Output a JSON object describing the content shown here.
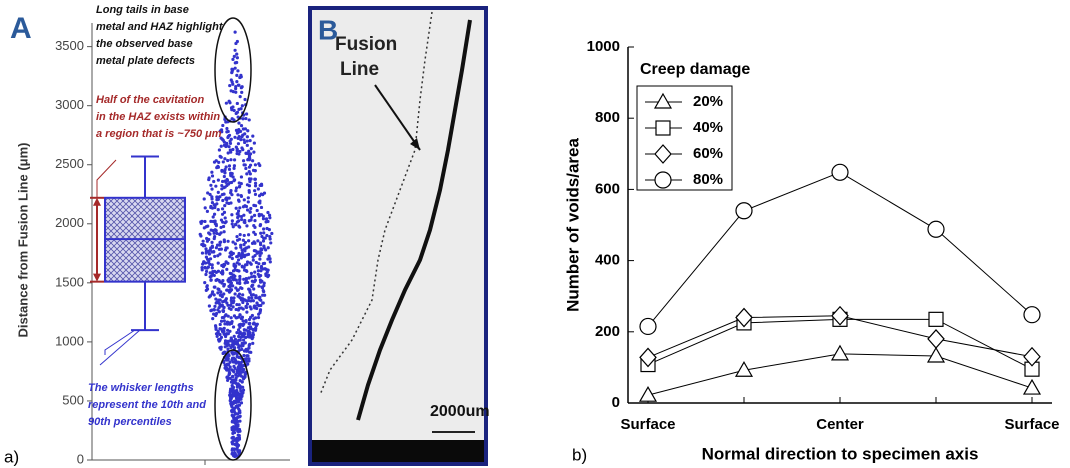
{
  "chart_data": [
    {
      "type": "box",
      "panel_label": "A",
      "caption": "a)",
      "y_label": "Distance from Fusion Line (μm)",
      "ylim": [
        0,
        3700
      ],
      "yticks": [
        0,
        500,
        1000,
        1500,
        2000,
        2500,
        3000,
        3500
      ],
      "color": "#3333cc",
      "box": {
        "whisker_low": 1100,
        "q1": 1510,
        "median": 1870,
        "q3": 2220,
        "whisker_high": 2570
      },
      "annotations": [
        {
          "lines": [
            "Long tails in base",
            "metal and HAZ highlight",
            "the observed base",
            "metal plate defects"
          ],
          "color": "#111111"
        },
        {
          "lines": [
            "Half of the cavitation",
            "in the HAZ exists within",
            "a region that is ~750 μm"
          ],
          "color": "#a52a2a"
        },
        {
          "lines": [
            "The whisker lengths",
            "represent the 10th and",
            "90th percentiles"
          ],
          "color": "#3333cc"
        }
      ]
    },
    {
      "type": "line",
      "caption": "b)",
      "y_label": "Number of voids/area",
      "x_label": "Normal direction to specimen axis",
      "legend_title": "Creep damage",
      "categories": [
        "Surface",
        null,
        "Center",
        null,
        "Surface"
      ],
      "ylim": [
        0,
        1000
      ],
      "yticks": [
        0,
        200,
        400,
        600,
        800,
        1000
      ],
      "series": [
        {
          "name": "20%",
          "marker": "triangle",
          "color": "#000000",
          "values": [
            22,
            92,
            138,
            132,
            42
          ]
        },
        {
          "name": "40%",
          "marker": "square",
          "color": "#000000",
          "values": [
            108,
            225,
            235,
            235,
            95
          ]
        },
        {
          "name": "60%",
          "marker": "diamond",
          "color": "#000000",
          "values": [
            128,
            240,
            245,
            180,
            130
          ]
        },
        {
          "name": "80%",
          "marker": "circle",
          "color": "#000000",
          "values": [
            215,
            540,
            648,
            488,
            248
          ]
        }
      ]
    }
  ],
  "micrograph": {
    "panel_label": "B",
    "label_lines": [
      "Fusion",
      "Line"
    ],
    "scale_bar": "2000um"
  }
}
